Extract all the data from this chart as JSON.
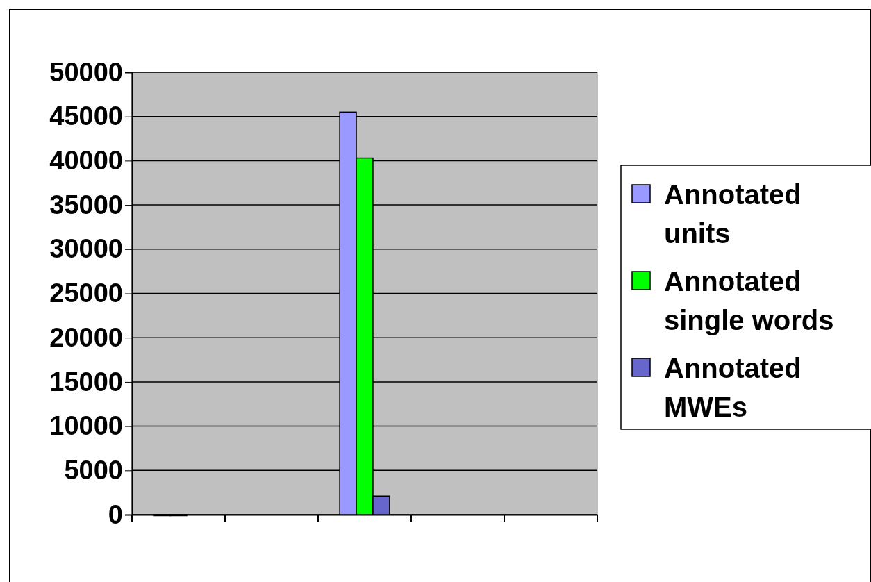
{
  "chart_data": {
    "type": "bar",
    "categories": [
      null,
      null,
      null,
      null,
      null
    ],
    "series": [
      {
        "name": "Annotated units",
        "color": "#9999ff",
        "values": [
          0,
          null,
          45500,
          null,
          null
        ]
      },
      {
        "name": "Annotated single words",
        "color": "#00ff00",
        "values": [
          0,
          null,
          40300,
          null,
          null
        ]
      },
      {
        "name": "Annotated MWEs",
        "color": "#6666cc",
        "values": [
          null,
          null,
          2100,
          null,
          null
        ]
      }
    ],
    "ylim": [
      0,
      50000
    ],
    "yticks": [
      0,
      5000,
      10000,
      15000,
      20000,
      25000,
      30000,
      35000,
      40000,
      45000,
      50000
    ],
    "grid": "y",
    "legend": "right"
  }
}
